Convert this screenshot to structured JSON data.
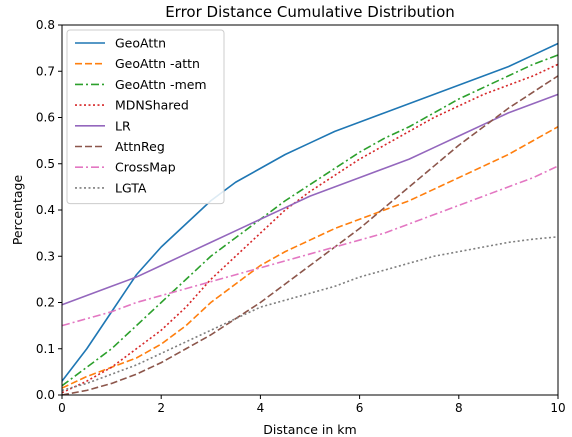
{
  "chart_data": {
    "type": "line",
    "title": "Error Distance Cumulative Distribution",
    "xlabel": "Distance in km",
    "ylabel": "Percentage",
    "xlim": [
      0,
      10
    ],
    "ylim": [
      0,
      0.8
    ],
    "xticks": [
      0,
      2,
      4,
      6,
      8,
      10
    ],
    "yticks": [
      0.0,
      0.1,
      0.2,
      0.3,
      0.4,
      0.5,
      0.6,
      0.7,
      0.8
    ],
    "xtick_labels": [
      "0",
      "2",
      "4",
      "6",
      "8",
      "10"
    ],
    "ytick_labels": [
      "0.0",
      "0.1",
      "0.2",
      "0.3",
      "0.4",
      "0.5",
      "0.6",
      "0.7",
      "0.8"
    ],
    "grid": false,
    "legend_position": "upper-left",
    "x": [
      0,
      0.5,
      1,
      1.5,
      2,
      2.5,
      3,
      3.5,
      4,
      4.5,
      5,
      5.5,
      6,
      6.5,
      7,
      7.5,
      8,
      8.5,
      9,
      9.5,
      10
    ],
    "series": [
      {
        "name": "GeoAttn",
        "color": "#1f77b4",
        "dash": "solid",
        "values": [
          0.03,
          0.1,
          0.18,
          0.26,
          0.32,
          0.37,
          0.42,
          0.46,
          0.49,
          0.52,
          0.545,
          0.57,
          0.59,
          0.61,
          0.63,
          0.65,
          0.67,
          0.69,
          0.71,
          0.735,
          0.76
        ]
      },
      {
        "name": "GeoAttn -attn",
        "color": "#ff7f0e",
        "dash": "dashed",
        "values": [
          0.015,
          0.04,
          0.06,
          0.08,
          0.11,
          0.15,
          0.2,
          0.24,
          0.28,
          0.31,
          0.335,
          0.36,
          0.38,
          0.4,
          0.42,
          0.445,
          0.47,
          0.495,
          0.52,
          0.55,
          0.58
        ]
      },
      {
        "name": "GeoAttn -mem",
        "color": "#2ca02c",
        "dash": "dashdot",
        "values": [
          0.02,
          0.06,
          0.1,
          0.15,
          0.2,
          0.25,
          0.3,
          0.34,
          0.38,
          0.42,
          0.455,
          0.49,
          0.525,
          0.555,
          0.58,
          0.61,
          0.64,
          0.665,
          0.69,
          0.715,
          0.735
        ]
      },
      {
        "name": "MDNShared",
        "color": "#d62728",
        "dash": "dotted",
        "values": [
          0.005,
          0.03,
          0.06,
          0.1,
          0.14,
          0.19,
          0.25,
          0.3,
          0.35,
          0.4,
          0.44,
          0.475,
          0.51,
          0.54,
          0.57,
          0.6,
          0.625,
          0.65,
          0.67,
          0.69,
          0.715
        ]
      },
      {
        "name": "LR",
        "color": "#9467bd",
        "dash": "solid",
        "values": [
          0.195,
          0.215,
          0.235,
          0.255,
          0.28,
          0.305,
          0.33,
          0.355,
          0.38,
          0.405,
          0.43,
          0.45,
          0.47,
          0.49,
          0.51,
          0.535,
          0.56,
          0.585,
          0.61,
          0.63,
          0.65
        ]
      },
      {
        "name": "AttnReg",
        "color": "#8c564b",
        "dash": "dashed",
        "values": [
          0.0,
          0.01,
          0.025,
          0.045,
          0.07,
          0.1,
          0.13,
          0.165,
          0.2,
          0.24,
          0.28,
          0.32,
          0.36,
          0.405,
          0.45,
          0.495,
          0.54,
          0.58,
          0.62,
          0.655,
          0.69
        ]
      },
      {
        "name": "CrossMap",
        "color": "#e377c2",
        "dash": "dashdot",
        "values": [
          0.15,
          0.165,
          0.18,
          0.2,
          0.215,
          0.23,
          0.245,
          0.26,
          0.275,
          0.29,
          0.305,
          0.32,
          0.335,
          0.35,
          0.37,
          0.39,
          0.41,
          0.43,
          0.45,
          0.47,
          0.495
        ]
      },
      {
        "name": "LGTA",
        "color": "#7f7f7f",
        "dash": "dotted",
        "values": [
          0.01,
          0.025,
          0.045,
          0.065,
          0.09,
          0.115,
          0.14,
          0.165,
          0.19,
          0.205,
          0.22,
          0.235,
          0.255,
          0.27,
          0.285,
          0.3,
          0.31,
          0.32,
          0.33,
          0.337,
          0.342
        ]
      }
    ]
  }
}
